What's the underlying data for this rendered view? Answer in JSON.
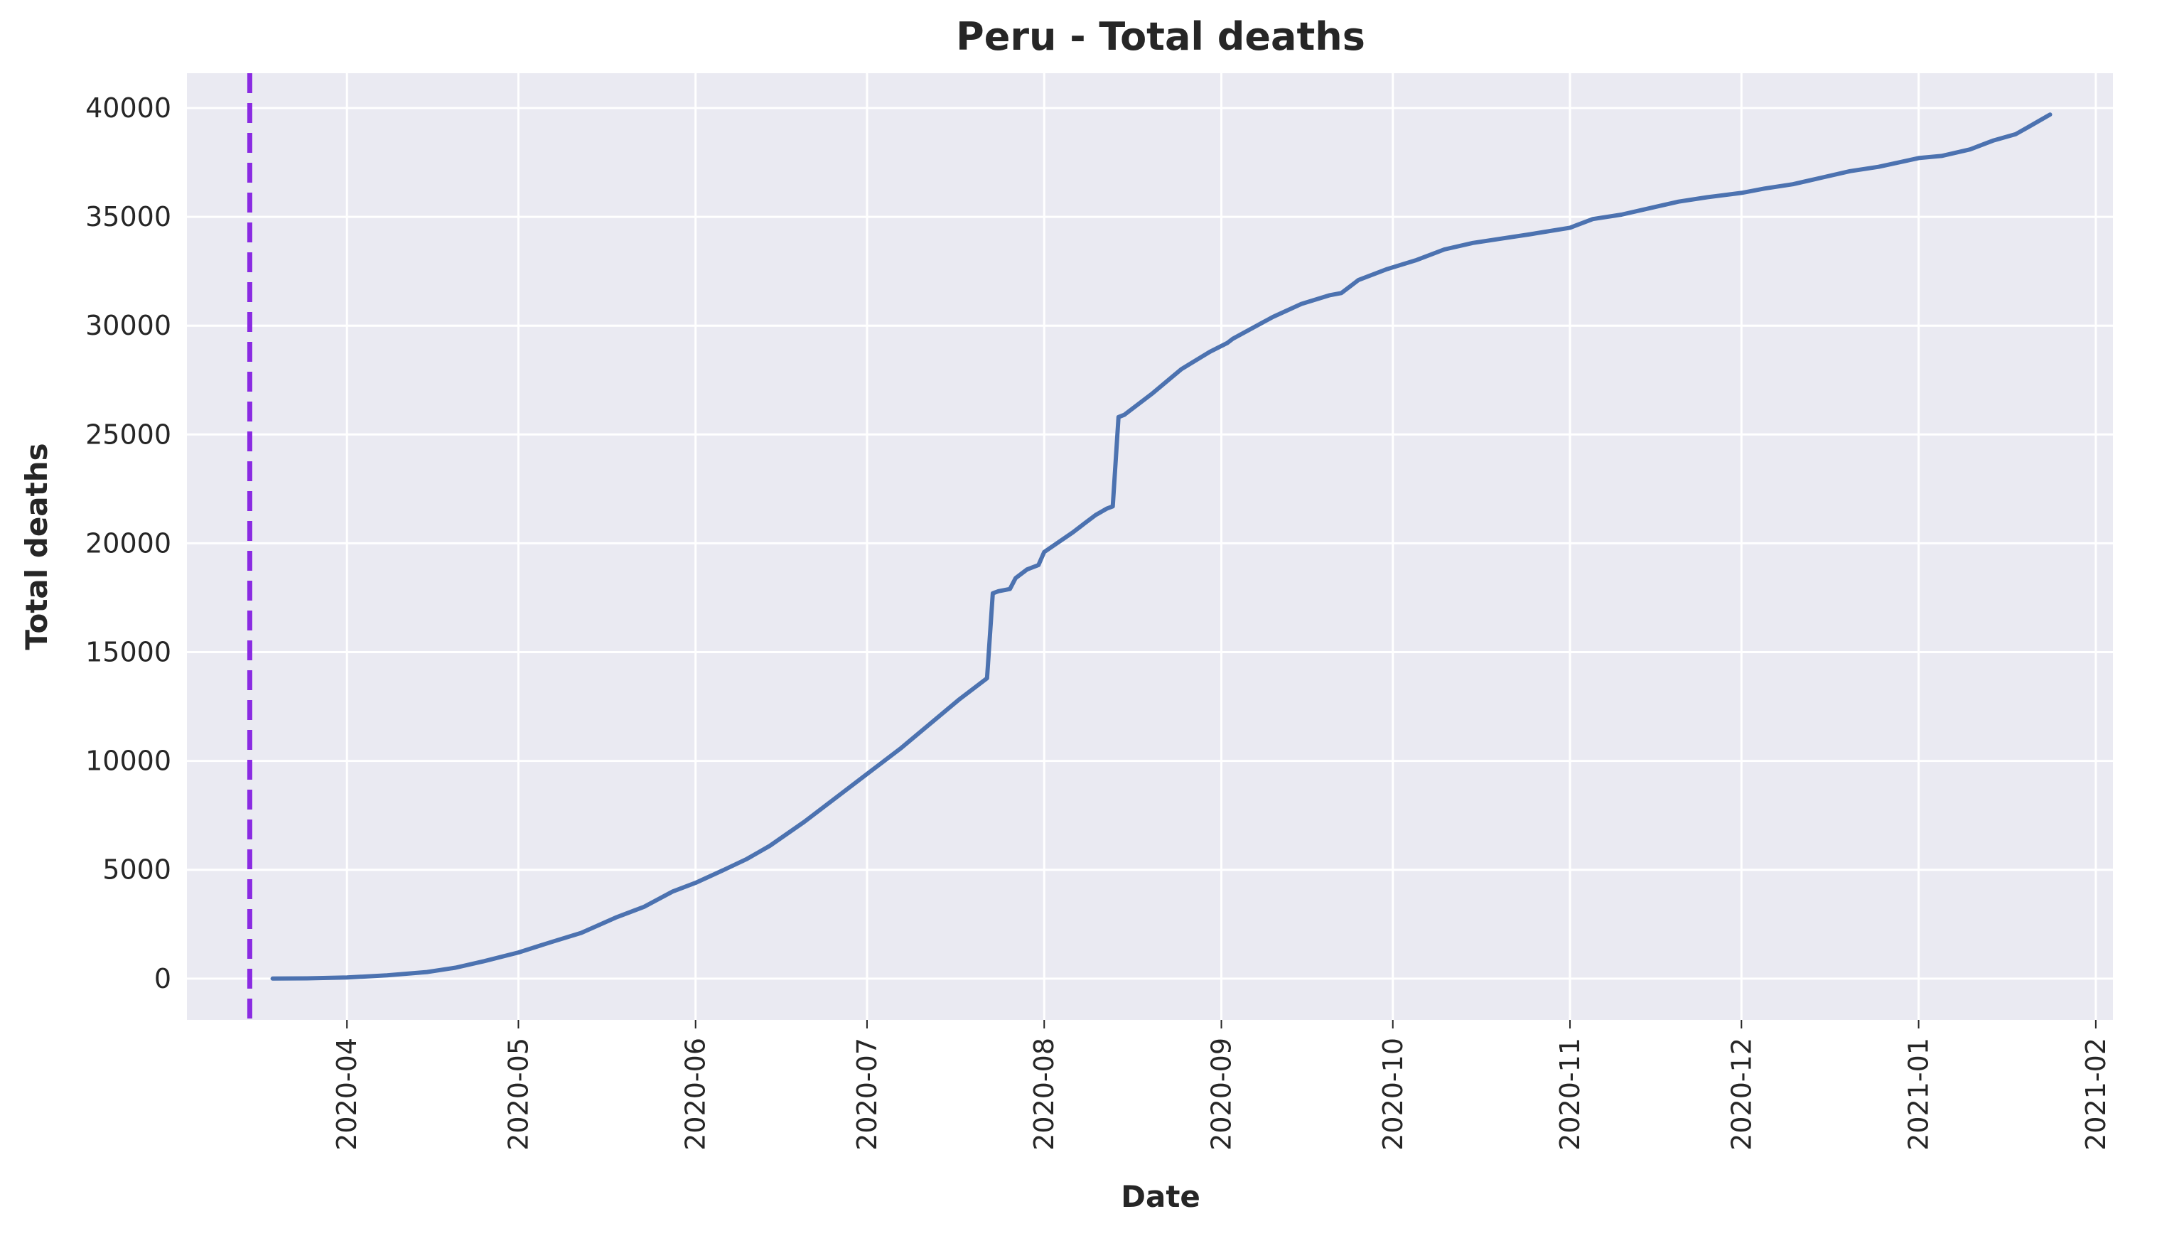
{
  "chart_data": {
    "type": "line",
    "title": "Peru - Total deaths",
    "xlabel": "Date",
    "ylabel": "Total deaths",
    "grid": true,
    "legend": "none",
    "xlim": [
      "2020-03-04",
      "2021-02-04"
    ],
    "ylim": [
      -1900,
      41600
    ],
    "x_ticks": [
      "2020-04-01",
      "2020-05-01",
      "2020-06-01",
      "2020-07-01",
      "2020-08-01",
      "2020-09-01",
      "2020-10-01",
      "2020-11-01",
      "2020-12-01",
      "2021-01-01",
      "2021-02-01"
    ],
    "x_tick_labels": [
      "2020-04",
      "2020-05",
      "2020-06",
      "2020-07",
      "2020-08",
      "2020-09",
      "2020-10",
      "2020-11",
      "2020-12",
      "2021-01",
      "2021-02"
    ],
    "y_ticks": [
      0,
      5000,
      10000,
      15000,
      20000,
      25000,
      30000,
      35000,
      40000
    ],
    "y_tick_labels": [
      "0",
      "5000",
      "10000",
      "15000",
      "20000",
      "25000",
      "30000",
      "35000",
      "40000"
    ],
    "vertical_marker": {
      "x": "2020-03-15",
      "style": "dashed",
      "color": "#8a2be2"
    },
    "colors": {
      "background": "#eaeaf2",
      "grid": "#ffffff",
      "line": "#4c72b0"
    },
    "series": [
      {
        "color": "#4c72b0",
        "x": [
          "2020-03-19",
          "2020-03-25",
          "2020-04-01",
          "2020-04-08",
          "2020-04-15",
          "2020-04-20",
          "2020-04-25",
          "2020-05-01",
          "2020-05-07",
          "2020-05-12",
          "2020-05-18",
          "2020-05-23",
          "2020-05-28",
          "2020-06-01",
          "2020-06-06",
          "2020-06-10",
          "2020-06-12",
          "2020-06-14",
          "2020-06-20",
          "2020-06-25",
          "2020-07-01",
          "2020-07-07",
          "2020-07-12",
          "2020-07-17",
          "2020-07-22",
          "2020-07-23",
          "2020-07-24",
          "2020-07-26",
          "2020-07-27",
          "2020-07-29",
          "2020-07-31",
          "2020-08-01",
          "2020-08-06",
          "2020-08-08",
          "2020-08-10",
          "2020-08-12",
          "2020-08-13",
          "2020-08-14",
          "2020-08-15",
          "2020-08-20",
          "2020-08-25",
          "2020-08-30",
          "2020-09-02",
          "2020-09-03",
          "2020-09-10",
          "2020-09-15",
          "2020-09-20",
          "2020-09-22",
          "2020-09-25",
          "2020-09-30",
          "2020-10-05",
          "2020-10-10",
          "2020-10-15",
          "2020-10-20",
          "2020-10-25",
          "2020-11-01",
          "2020-11-02",
          "2020-11-05",
          "2020-11-10",
          "2020-11-15",
          "2020-11-20",
          "2020-11-25",
          "2020-12-01",
          "2020-12-05",
          "2020-12-10",
          "2020-12-15",
          "2020-12-20",
          "2020-12-25",
          "2021-01-01",
          "2021-01-05",
          "2021-01-10",
          "2021-01-14",
          "2021-01-18",
          "2021-01-20",
          "2021-01-22",
          "2021-01-24"
        ],
        "y": [
          0,
          10,
          50,
          150,
          300,
          500,
          800,
          1200,
          1700,
          2100,
          2800,
          3300,
          4000,
          4400,
          5000,
          5500,
          5800,
          6100,
          7200,
          8200,
          9400,
          10600,
          11700,
          12800,
          13800,
          17700,
          17800,
          17900,
          18400,
          18800,
          19000,
          19600,
          20500,
          20900,
          21300,
          21600,
          21700,
          25800,
          25900,
          26900,
          28000,
          28800,
          29200,
          29400,
          30400,
          31000,
          31400,
          31500,
          32100,
          32600,
          33000,
          33500,
          33800,
          34000,
          34200,
          34500,
          34600,
          34900,
          35100,
          35400,
          35700,
          35900,
          36100,
          36300,
          36500,
          36800,
          37100,
          37300,
          37700,
          37800,
          38100,
          38500,
          38800,
          39100,
          39400,
          39700
        ]
      }
    ]
  }
}
